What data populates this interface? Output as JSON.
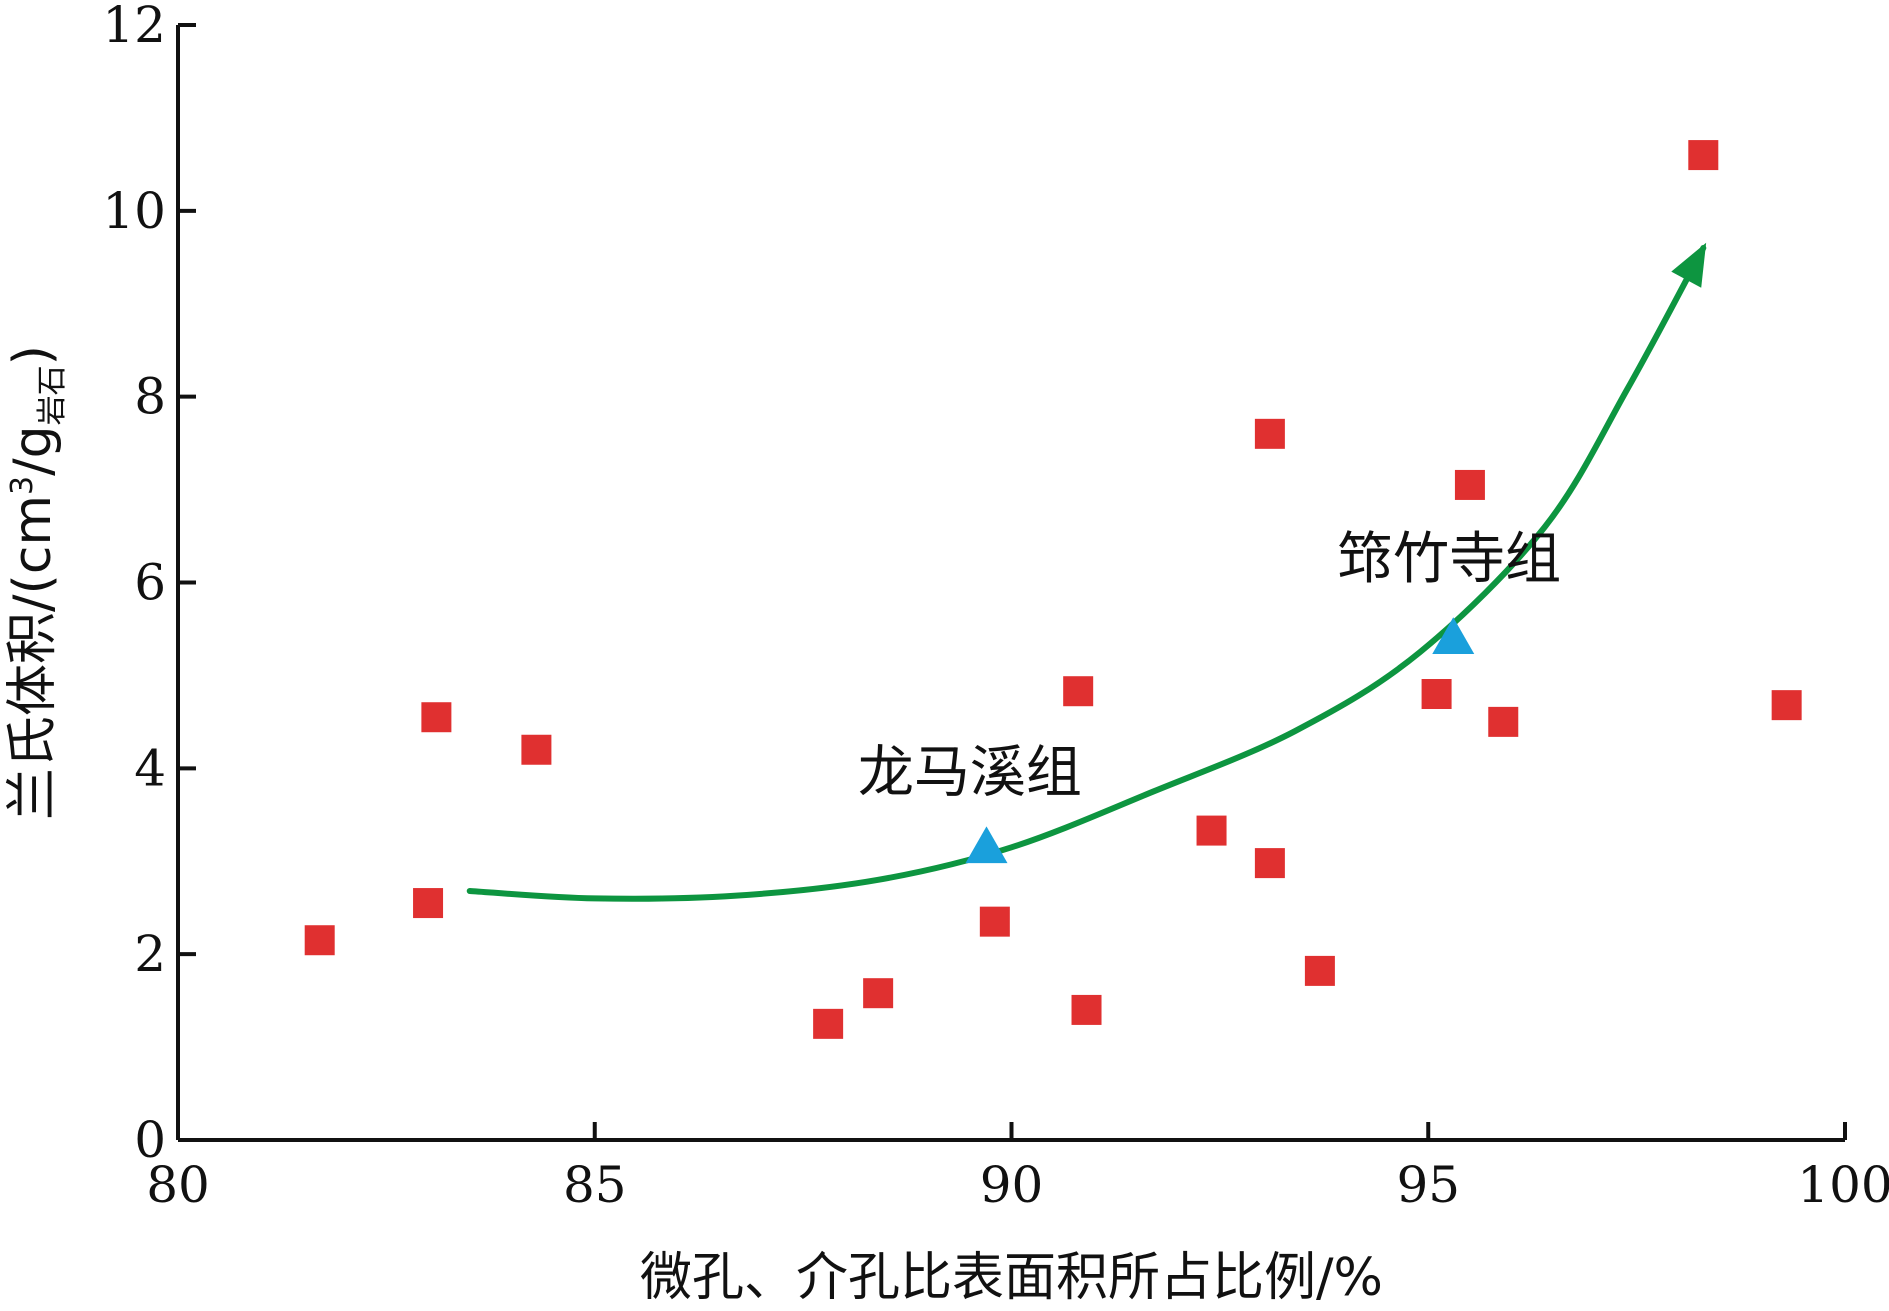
{
  "chart_data": {
    "type": "scatter",
    "xlabel": "微孔、介孔比表面积所占比例/%",
    "ylabel": {
      "main": "兰氏体积/(cm",
      "sup": "3",
      "mid": "/g",
      "sub": "岩石",
      "end": ")"
    },
    "xlim": [
      80,
      100
    ],
    "ylim": [
      0,
      12
    ],
    "xticks": [
      "80",
      "85",
      "90",
      "95",
      "100"
    ],
    "yticks": [
      "0",
      "2",
      "4",
      "6",
      "8",
      "10",
      "12"
    ],
    "grid": false,
    "legend": "none",
    "series": [
      {
        "marker": "square",
        "color": "#e03030",
        "points": [
          [
            81.7,
            2.15
          ],
          [
            83.0,
            2.55
          ],
          [
            83.1,
            4.55
          ],
          [
            84.3,
            4.2
          ],
          [
            87.8,
            1.25
          ],
          [
            88.4,
            1.58
          ],
          [
            89.8,
            2.35
          ],
          [
            90.8,
            4.83
          ],
          [
            90.9,
            1.4
          ],
          [
            92.4,
            3.33
          ],
          [
            93.1,
            7.6
          ],
          [
            93.1,
            2.98
          ],
          [
            93.7,
            1.82
          ],
          [
            95.1,
            4.8
          ],
          [
            95.5,
            7.05
          ],
          [
            95.9,
            4.5
          ],
          [
            98.3,
            10.6
          ],
          [
            99.3,
            4.68
          ]
        ]
      },
      {
        "marker": "triangle",
        "color": "#1aa0dc",
        "points": [
          [
            89.7,
            3.15
          ],
          [
            95.3,
            5.4
          ]
        ]
      }
    ],
    "annotations": [
      {
        "text": "龙马溪组",
        "x": 89.5,
        "y": 3.75
      },
      {
        "text": "筇竹寺组",
        "x": 95.25,
        "y": 6.05
      }
    ],
    "trend_arrow": {
      "color": "#0d9540",
      "points": [
        [
          83.5,
          2.68
        ],
        [
          85.0,
          2.6
        ],
        [
          86.7,
          2.63
        ],
        [
          88.4,
          2.8
        ],
        [
          90.0,
          3.15
        ],
        [
          91.7,
          3.75
        ],
        [
          93.4,
          4.4
        ],
        [
          94.9,
          5.25
        ],
        [
          96.4,
          6.6
        ],
        [
          97.4,
          8.1
        ],
        [
          98.3,
          9.6
        ]
      ]
    }
  }
}
